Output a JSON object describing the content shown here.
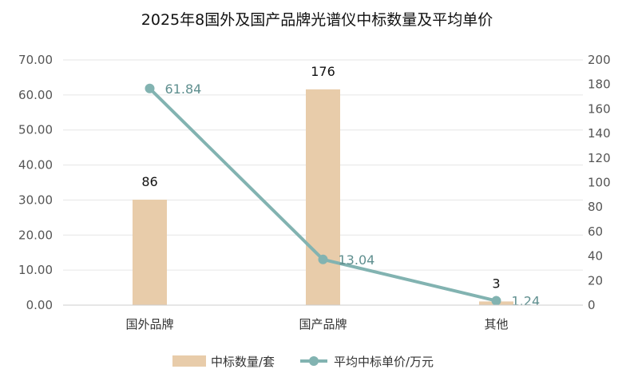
{
  "chart_data": {
    "type": "bar",
    "title": "2025年8国外及国产品牌光谱仪中标数量及平均单价",
    "categories": [
      "国外品牌",
      "国产品牌",
      "其他"
    ],
    "series": [
      {
        "name": "中标数量/套",
        "type": "bar",
        "axis": "right",
        "values": [
          86,
          176,
          3
        ],
        "labels": [
          "86",
          "176",
          "3"
        ],
        "color": "#e8ccaa"
      },
      {
        "name": "平均中标单价/万元",
        "type": "line",
        "axis": "left",
        "values": [
          61.84,
          13.04,
          1.24
        ],
        "labels": [
          "61.84",
          "13.04",
          "1.24"
        ],
        "color": "#82b3b1"
      }
    ],
    "y_left": {
      "ylim": [
        0,
        70
      ],
      "ticks": [
        "0.00",
        "10.00",
        "20.00",
        "30.00",
        "40.00",
        "50.00",
        "60.00",
        "70.00"
      ]
    },
    "y_right": {
      "ylim": [
        0,
        200
      ],
      "ticks": [
        "0",
        "20",
        "40",
        "60",
        "80",
        "100",
        "120",
        "140",
        "160",
        "180",
        "200"
      ]
    },
    "grid": true,
    "legend": "bottom"
  }
}
